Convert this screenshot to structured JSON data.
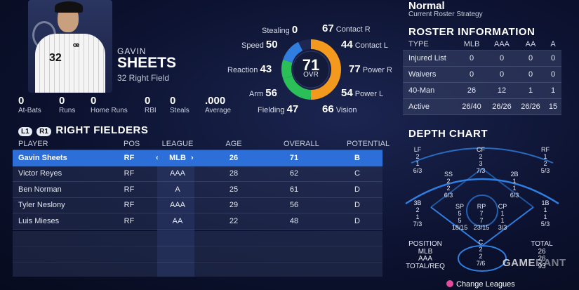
{
  "player": {
    "first_name": "GAVIN",
    "last_name": "SHEETS",
    "number_position": "32  Right Field",
    "jersey_number": "32"
  },
  "stats": [
    {
      "value": "0",
      "label": "At-Bats"
    },
    {
      "value": "0",
      "label": "Runs"
    },
    {
      "value": "0",
      "label": "Home Runs"
    },
    {
      "value": "0",
      "label": "RBI"
    },
    {
      "value": "0",
      "label": "Steals"
    },
    {
      "value": ".000",
      "label": "Average"
    }
  ],
  "attributes": {
    "stealing": {
      "label": "Stealing",
      "value": "0"
    },
    "speed": {
      "label": "Speed",
      "value": "50"
    },
    "reaction": {
      "label": "Reaction",
      "value": "43"
    },
    "arm": {
      "label": "Arm",
      "value": "56"
    },
    "fielding": {
      "label": "Fielding",
      "value": "47"
    },
    "contact_r": {
      "label": "Contact R",
      "value": "67"
    },
    "contact_l": {
      "label": "Contact L",
      "value": "44"
    },
    "power_r": {
      "label": "Power R",
      "value": "77"
    },
    "power_l": {
      "label": "Power L",
      "value": "54"
    },
    "vision": {
      "label": "Vision",
      "value": "66"
    }
  },
  "overall": {
    "value": "71",
    "label": "OVR"
  },
  "colors": {
    "accent_blue": "#2d6fd8",
    "ring_orange": "#f39a1e",
    "ring_green": "#2bbf58",
    "ring_blue": "#2f7ee0"
  },
  "right_fielders": {
    "buttons": [
      "L1",
      "R1"
    ],
    "title": "RIGHT FIELDERS",
    "headers": {
      "player": "PLAYER",
      "pos": "POS",
      "league": "LEAGUE",
      "age": "AGE",
      "overall": "OVERALL",
      "potential": "POTENTIAL"
    },
    "rows": [
      {
        "player": "Gavin Sheets",
        "pos": "RF",
        "league": "MLB",
        "age": "26",
        "overall": "71",
        "potential": "B"
      },
      {
        "player": "Victor Reyes",
        "pos": "RF",
        "league": "AAA",
        "age": "28",
        "overall": "62",
        "potential": "C"
      },
      {
        "player": "Ben Norman",
        "pos": "RF",
        "league": "A",
        "age": "25",
        "overall": "61",
        "potential": "D"
      },
      {
        "player": "Tyler Neslony",
        "pos": "RF",
        "league": "AAA",
        "age": "29",
        "overall": "56",
        "potential": "D"
      },
      {
        "player": "Luis Mieses",
        "pos": "RF",
        "league": "AA",
        "age": "22",
        "overall": "48",
        "potential": "D"
      }
    ],
    "league_arrows": {
      "left": "‹",
      "right": "›"
    }
  },
  "strategy": {
    "value": "Normal",
    "label": "Current Roster Strategy"
  },
  "roster_info": {
    "title": "ROSTER INFORMATION",
    "headers": {
      "type": "TYPE",
      "mlb": "MLB",
      "aaa": "AAA",
      "aa": "AA",
      "a": "A"
    },
    "rows": [
      {
        "type": "Injured List",
        "mlb": "0",
        "aaa": "0",
        "aa": "0",
        "a": "0"
      },
      {
        "type": "Waivers",
        "mlb": "0",
        "aaa": "0",
        "aa": "0",
        "a": "0"
      },
      {
        "type": "40-Man",
        "mlb": "26",
        "aaa": "12",
        "aa": "1",
        "a": "1"
      },
      {
        "type": "Active",
        "mlb": "26/40",
        "aaa": "26/26",
        "aa": "26/26",
        "a": "15"
      }
    ]
  },
  "depth_chart": {
    "title": "DEPTH CHART",
    "positions": {
      "lf": {
        "label": "LF",
        "lines": [
          "2",
          "1",
          "6/3"
        ]
      },
      "cf": {
        "label": "CF",
        "lines": [
          "2",
          "3",
          "7/3"
        ]
      },
      "rf": {
        "label": "RF",
        "lines": [
          "1",
          "2",
          "5/3"
        ]
      },
      "ss": {
        "label": "SS",
        "lines": [
          "2",
          "2",
          "6/3"
        ]
      },
      "2b": {
        "label": "2B",
        "lines": [
          "1",
          "1",
          "6/3"
        ]
      },
      "3b": {
        "label": "3B",
        "lines": [
          "2",
          "1",
          "7/3"
        ]
      },
      "sp": {
        "label": "SP",
        "lines": [
          "5",
          "5",
          "18/15"
        ]
      },
      "rp": {
        "label": "RP",
        "lines": [
          "7",
          "7",
          "23/15"
        ]
      },
      "cp": {
        "label": "CP",
        "lines": [
          "1",
          "1",
          "3/3"
        ]
      },
      "1b": {
        "label": "1B",
        "lines": [
          "1",
          "1",
          "5/3"
        ]
      },
      "c": {
        "label": "C",
        "lines": [
          "2",
          "2",
          "7/6"
        ]
      }
    },
    "legend": [
      "POSITION",
      "MLB",
      "AAA",
      "TOTAL/REQ"
    ],
    "total": {
      "label": "TOTAL",
      "values": [
        "26",
        "26",
        "93"
      ]
    }
  },
  "watermark": {
    "main": "GAME",
    "faded": "RANT"
  },
  "footer": {
    "change_leagues": "Change Leagues"
  }
}
